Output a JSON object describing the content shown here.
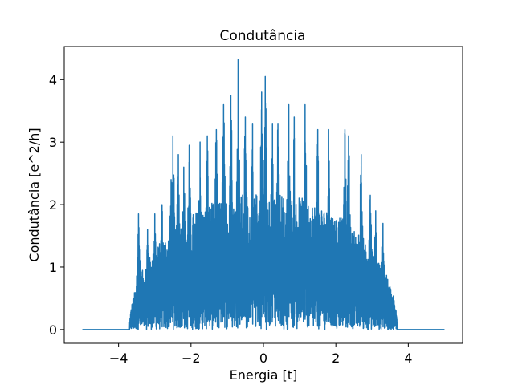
{
  "chart_data": {
    "type": "line",
    "title": "Condutância",
    "xlabel": "Energia [t]",
    "ylabel": "Condutância [e^2/h]",
    "xlim": [
      -5.5,
      5.5
    ],
    "ylim": [
      -0.22,
      4.53
    ],
    "x_ticks": [
      -4,
      -2,
      0,
      2,
      4
    ],
    "x_tick_labels": [
      "−4",
      "−2",
      "0",
      "2",
      "4"
    ],
    "y_ticks": [
      0,
      1,
      2,
      3,
      4
    ],
    "y_tick_labels": [
      "0",
      "1",
      "2",
      "3",
      "4"
    ],
    "grid": false,
    "series": [
      {
        "color": "#1f77b4",
        "x_range": [
          -5,
          5
        ],
        "baseline": 0,
        "band_edges": [
          -3.7,
          3.7
        ],
        "peaks": [
          {
            "x": -3.55,
            "y": 0.55
          },
          {
            "x": -3.45,
            "y": 1.85
          },
          {
            "x": -3.4,
            "y": 1.1
          },
          {
            "x": -3.2,
            "y": 1.6
          },
          {
            "x": -3.0,
            "y": 1.85
          },
          {
            "x": -2.8,
            "y": 2.0
          },
          {
            "x": -2.55,
            "y": 2.4
          },
          {
            "x": -2.5,
            "y": 3.1
          },
          {
            "x": -2.35,
            "y": 2.8
          },
          {
            "x": -2.2,
            "y": 2.6
          },
          {
            "x": -2.05,
            "y": 2.95
          },
          {
            "x": -1.75,
            "y": 3.0
          },
          {
            "x": -1.55,
            "y": 3.1
          },
          {
            "x": -1.3,
            "y": 3.2
          },
          {
            "x": -1.1,
            "y": 3.6
          },
          {
            "x": -0.9,
            "y": 3.75
          },
          {
            "x": -0.7,
            "y": 4.32
          },
          {
            "x": -0.5,
            "y": 3.4
          },
          {
            "x": -0.3,
            "y": 3.3
          },
          {
            "x": -0.05,
            "y": 3.8
          },
          {
            "x": 0.05,
            "y": 4.05
          },
          {
            "x": 0.25,
            "y": 3.3
          },
          {
            "x": 0.4,
            "y": 3.3
          },
          {
            "x": 0.7,
            "y": 3.6
          },
          {
            "x": 0.85,
            "y": 3.4
          },
          {
            "x": 1.15,
            "y": 3.6
          },
          {
            "x": 1.5,
            "y": 3.2
          },
          {
            "x": 1.8,
            "y": 3.2
          },
          {
            "x": 2.25,
            "y": 3.2
          },
          {
            "x": 2.35,
            "y": 3.1
          },
          {
            "x": 2.7,
            "y": 2.8
          },
          {
            "x": 2.95,
            "y": 2.15
          },
          {
            "x": 3.1,
            "y": 1.9
          },
          {
            "x": 3.3,
            "y": 1.7
          },
          {
            "x": 3.45,
            "y": 0.5
          },
          {
            "x": 3.6,
            "y": 0.4
          }
        ]
      }
    ]
  }
}
